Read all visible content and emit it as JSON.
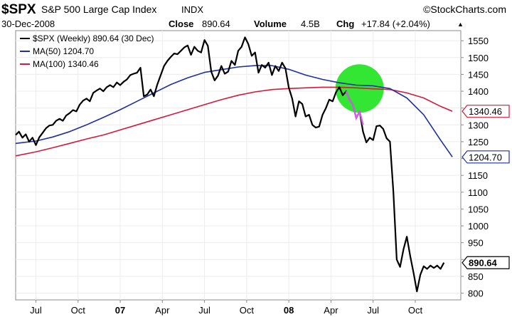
{
  "header": {
    "symbol": "$SPX",
    "name": "S&P 500 Large Cap Index",
    "exchange": "INDX",
    "watermark": "©StockCharts.com",
    "date": "30-Dec-2008",
    "close_label": "Close",
    "close_value": "890.64",
    "volume_label": "Volume",
    "volume_value": "4.5B",
    "chg_label": "Chg",
    "chg_value": "+17.84 (+2.04%)",
    "chg_arrow": "▲"
  },
  "legend": [
    {
      "label": "$SPX (Weekly) 890.64 (30 Dec)",
      "color": "#000000"
    },
    {
      "label": "MA(50) 1204.70",
      "color": "#1f2fa0"
    },
    {
      "label": "MA(100) 1340.46",
      "color": "#d01c3c"
    }
  ],
  "price_tags": [
    {
      "text": "1340.46",
      "color": "#d01c3c"
    },
    {
      "text": "1204.70",
      "color": "#1f2fa0"
    },
    {
      "text": "890.64",
      "color": "#000000"
    }
  ],
  "chart_data": {
    "type": "line",
    "ylim": [
      780,
      1580
    ],
    "y_ticks": [
      800,
      850,
      900,
      950,
      1000,
      1050,
      1100,
      1150,
      1200,
      1250,
      1300,
      1350,
      1400,
      1450,
      1500,
      1550
    ],
    "x_tick_labels": [
      {
        "label": "Jul",
        "bold": false,
        "x": 2006.5
      },
      {
        "label": "Oct",
        "bold": false,
        "x": 2006.75
      },
      {
        "label": "07",
        "bold": true,
        "x": 2007.0
      },
      {
        "label": "Apr",
        "bold": false,
        "x": 2007.25
      },
      {
        "label": "Jul",
        "bold": false,
        "x": 2007.5
      },
      {
        "label": "Oct",
        "bold": false,
        "x": 2007.75
      },
      {
        "label": "08",
        "bold": true,
        "x": 2008.0
      },
      {
        "label": "Apr",
        "bold": false,
        "x": 2008.25
      },
      {
        "label": "Jul",
        "bold": false,
        "x": 2008.5
      },
      {
        "label": "Oct",
        "bold": false,
        "x": 2008.75
      }
    ],
    "xlim": [
      2006.38,
      2009.02
    ],
    "series": [
      {
        "name": "$SPX (Weekly)",
        "color": "#000000",
        "points": [
          [
            2006.38,
            1270
          ],
          [
            2006.4,
            1280
          ],
          [
            2006.42,
            1262
          ],
          [
            2006.44,
            1272
          ],
          [
            2006.46,
            1250
          ],
          [
            2006.48,
            1262
          ],
          [
            2006.5,
            1240
          ],
          [
            2006.52,
            1263
          ],
          [
            2006.54,
            1276
          ],
          [
            2006.56,
            1290
          ],
          [
            2006.58,
            1298
          ],
          [
            2006.6,
            1300
          ],
          [
            2006.62,
            1312
          ],
          [
            2006.64,
            1318
          ],
          [
            2006.66,
            1312
          ],
          [
            2006.68,
            1328
          ],
          [
            2006.7,
            1335
          ],
          [
            2006.72,
            1344
          ],
          [
            2006.74,
            1340
          ],
          [
            2006.76,
            1360
          ],
          [
            2006.78,
            1372
          ],
          [
            2006.8,
            1378
          ],
          [
            2006.82,
            1370
          ],
          [
            2006.84,
            1395
          ],
          [
            2006.86,
            1402
          ],
          [
            2006.88,
            1408
          ],
          [
            2006.9,
            1400
          ],
          [
            2006.92,
            1412
          ],
          [
            2006.94,
            1418
          ],
          [
            2006.96,
            1412
          ],
          [
            2006.98,
            1426
          ],
          [
            2007.0,
            1418
          ],
          [
            2007.02,
            1428
          ],
          [
            2007.04,
            1435
          ],
          [
            2007.06,
            1448
          ],
          [
            2007.08,
            1452
          ],
          [
            2007.1,
            1455
          ],
          [
            2007.12,
            1470
          ],
          [
            2007.14,
            1385
          ],
          [
            2007.16,
            1390
          ],
          [
            2007.18,
            1405
          ],
          [
            2007.2,
            1385
          ],
          [
            2007.22,
            1420
          ],
          [
            2007.24,
            1447
          ],
          [
            2007.26,
            1475
          ],
          [
            2007.28,
            1490
          ],
          [
            2007.3,
            1502
          ],
          [
            2007.32,
            1512
          ],
          [
            2007.34,
            1510
          ],
          [
            2007.36,
            1520
          ],
          [
            2007.38,
            1530
          ],
          [
            2007.4,
            1536
          ],
          [
            2007.42,
            1508
          ],
          [
            2007.44,
            1532
          ],
          [
            2007.46,
            1520
          ],
          [
            2007.48,
            1515
          ],
          [
            2007.5,
            1552
          ],
          [
            2007.52,
            1535
          ],
          [
            2007.54,
            1458
          ],
          [
            2007.56,
            1432
          ],
          [
            2007.58,
            1446
          ],
          [
            2007.6,
            1475
          ],
          [
            2007.62,
            1452
          ],
          [
            2007.64,
            1458
          ],
          [
            2007.66,
            1490
          ],
          [
            2007.68,
            1478
          ],
          [
            2007.7,
            1520
          ],
          [
            2007.72,
            1532
          ],
          [
            2007.74,
            1560
          ],
          [
            2007.76,
            1540
          ],
          [
            2007.78,
            1505
          ],
          [
            2007.8,
            1515
          ],
          [
            2007.82,
            1455
          ],
          [
            2007.84,
            1478
          ],
          [
            2007.86,
            1470
          ],
          [
            2007.88,
            1485
          ],
          [
            2007.9,
            1448
          ],
          [
            2007.92,
            1475
          ],
          [
            2007.94,
            1460
          ],
          [
            2007.96,
            1485
          ],
          [
            2007.98,
            1468
          ],
          [
            2008.0,
            1411
          ],
          [
            2008.02,
            1378
          ],
          [
            2008.04,
            1325
          ],
          [
            2008.06,
            1370
          ],
          [
            2008.08,
            1362
          ],
          [
            2008.1,
            1325
          ],
          [
            2008.12,
            1330
          ],
          [
            2008.14,
            1300
          ],
          [
            2008.16,
            1292
          ],
          [
            2008.18,
            1295
          ],
          [
            2008.2,
            1330
          ],
          [
            2008.22,
            1350
          ],
          [
            2008.24,
            1375
          ],
          [
            2008.26,
            1370
          ],
          [
            2008.28,
            1397
          ],
          [
            2008.3,
            1412
          ],
          [
            2008.32,
            1388
          ],
          [
            2008.34,
            1400
          ],
          [
            2008.36,
            1375
          ],
          [
            2008.38,
            1360
          ],
          [
            2008.4,
            1320
          ],
          [
            2008.42,
            1340
          ],
          [
            2008.44,
            1280
          ],
          [
            2008.46,
            1248
          ],
          [
            2008.48,
            1262
          ],
          [
            2008.5,
            1255
          ],
          [
            2008.52,
            1296
          ],
          [
            2008.54,
            1298
          ],
          [
            2008.56,
            1288
          ],
          [
            2008.58,
            1260
          ],
          [
            2008.6,
            1250
          ],
          [
            2008.62,
            1100
          ],
          [
            2008.64,
            900
          ],
          [
            2008.66,
            878
          ],
          [
            2008.68,
            930
          ],
          [
            2008.7,
            968
          ],
          [
            2008.72,
            910
          ],
          [
            2008.74,
            860
          ],
          [
            2008.76,
            805
          ],
          [
            2008.78,
            855
          ],
          [
            2008.8,
            880
          ],
          [
            2008.82,
            872
          ],
          [
            2008.84,
            882
          ],
          [
            2008.86,
            875
          ],
          [
            2008.88,
            882
          ],
          [
            2008.9,
            872
          ],
          [
            2008.92,
            890.64
          ]
        ]
      },
      {
        "name": "MA(50)",
        "color": "#1f2fa0",
        "points": [
          [
            2006.38,
            1245
          ],
          [
            2006.5,
            1252
          ],
          [
            2006.6,
            1264
          ],
          [
            2006.7,
            1280
          ],
          [
            2006.8,
            1300
          ],
          [
            2006.9,
            1322
          ],
          [
            2007.0,
            1345
          ],
          [
            2007.1,
            1370
          ],
          [
            2007.2,
            1395
          ],
          [
            2007.3,
            1420
          ],
          [
            2007.4,
            1440
          ],
          [
            2007.5,
            1456
          ],
          [
            2007.6,
            1464
          ],
          [
            2007.7,
            1472
          ],
          [
            2007.8,
            1476
          ],
          [
            2007.9,
            1476
          ],
          [
            2008.0,
            1465
          ],
          [
            2008.1,
            1448
          ],
          [
            2008.2,
            1435
          ],
          [
            2008.3,
            1425
          ],
          [
            2008.4,
            1418
          ],
          [
            2008.5,
            1416
          ],
          [
            2008.6,
            1408
          ],
          [
            2008.7,
            1380
          ],
          [
            2008.8,
            1330
          ],
          [
            2008.9,
            1255
          ],
          [
            2008.97,
            1204.7
          ]
        ]
      },
      {
        "name": "MA(100)",
        "color": "#d01c3c",
        "points": [
          [
            2006.38,
            1208
          ],
          [
            2006.5,
            1220
          ],
          [
            2006.6,
            1232
          ],
          [
            2006.7,
            1245
          ],
          [
            2006.8,
            1258
          ],
          [
            2006.9,
            1270
          ],
          [
            2007.0,
            1285
          ],
          [
            2007.1,
            1300
          ],
          [
            2007.2,
            1315
          ],
          [
            2007.3,
            1330
          ],
          [
            2007.4,
            1345
          ],
          [
            2007.5,
            1360
          ],
          [
            2007.6,
            1375
          ],
          [
            2007.7,
            1388
          ],
          [
            2007.8,
            1398
          ],
          [
            2007.9,
            1405
          ],
          [
            2008.0,
            1408
          ],
          [
            2008.1,
            1410
          ],
          [
            2008.2,
            1412
          ],
          [
            2008.3,
            1412
          ],
          [
            2008.4,
            1410
          ],
          [
            2008.5,
            1407
          ],
          [
            2008.6,
            1405
          ],
          [
            2008.7,
            1395
          ],
          [
            2008.8,
            1380
          ],
          [
            2008.9,
            1355
          ],
          [
            2008.97,
            1340.46
          ]
        ]
      }
    ],
    "highlight": {
      "center_x": 2008.42,
      "center_y": 1408,
      "color": "#33e633",
      "overlay_color": "#d060e0",
      "overlay_points": [
        [
          2008.34,
          1400
        ],
        [
          2008.36,
          1375
        ],
        [
          2008.38,
          1360
        ],
        [
          2008.4,
          1320
        ],
        [
          2008.42,
          1340
        ],
        [
          2008.44,
          1300
        ]
      ]
    }
  }
}
